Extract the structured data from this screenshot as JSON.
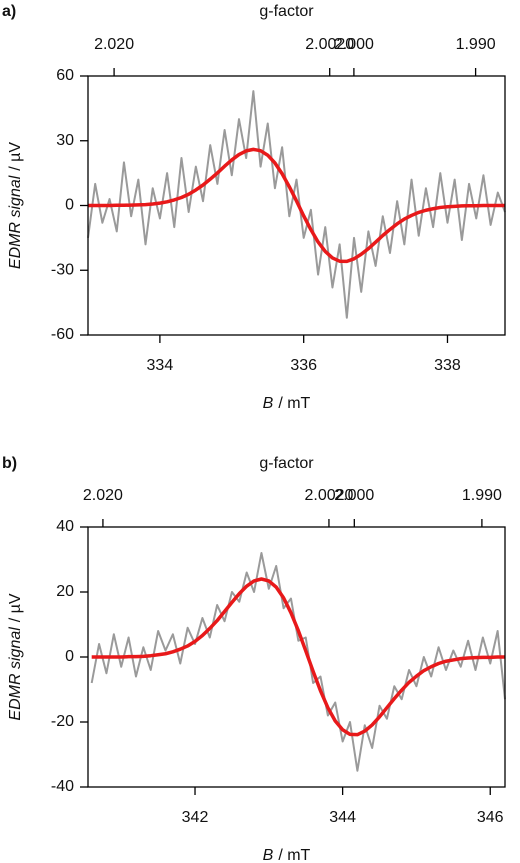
{
  "chart_data": [
    {
      "type": "line",
      "panel_label": "a)",
      "x2_label": "g-factor",
      "x_label": [
        "B",
        "/ mT"
      ],
      "y_label": [
        "EDMR signal",
        "/ µV"
      ],
      "xlim": [
        333,
        338.8
      ],
      "xticks": [
        334,
        336,
        338
      ],
      "ylim": [
        -60,
        60
      ],
      "yticks": [
        -60,
        -30,
        0,
        30,
        60
      ],
      "x2scale": "reciprocal",
      "x2lim": [
        2.0222,
        1.9876
      ],
      "x2ticks": [
        {
          "value": 2.02,
          "label": "2.020"
        },
        {
          "value": 2.002,
          "label": "2.0020"
        },
        {
          "value": 2,
          "label": "2.000"
        },
        {
          "value": 1.99,
          "label": "1.990"
        }
      ],
      "x": [
        333.0,
        333.1,
        333.2,
        333.3,
        333.4,
        333.5,
        333.6,
        333.7,
        333.8,
        333.9,
        334.0,
        334.1,
        334.2,
        334.3,
        334.4,
        334.5,
        334.6,
        334.7,
        334.8,
        334.9,
        335.0,
        335.1,
        335.2,
        335.3,
        335.4,
        335.5,
        335.6,
        335.7,
        335.8,
        335.9,
        336.0,
        336.1,
        336.2,
        336.3,
        336.4,
        336.5,
        336.6,
        336.7,
        336.8,
        336.9,
        337.0,
        337.1,
        337.2,
        337.3,
        337.4,
        337.5,
        337.6,
        337.7,
        337.8,
        337.9,
        338.0,
        338.1,
        338.2,
        338.3,
        338.4,
        338.5,
        338.6,
        338.7,
        338.8
      ],
      "series": [
        {
          "color": "#9a9a9a",
          "width": 2,
          "values": [
            -15,
            10,
            -8,
            3,
            -12,
            20,
            -5,
            12,
            -18,
            8,
            -6,
            15,
            -10,
            22,
            -3,
            18,
            2,
            28,
            10,
            35,
            14,
            40,
            22,
            53,
            18,
            38,
            8,
            27,
            -5,
            12,
            -15,
            -2,
            -32,
            -10,
            -38,
            -18,
            -52,
            -15,
            -40,
            -12,
            -28,
            -5,
            -22,
            2,
            -18,
            12,
            -14,
            8,
            -10,
            15,
            -8,
            12,
            -16,
            10,
            -6,
            14,
            -9,
            6,
            -3
          ]
        },
        {
          "color": "#e8191a",
          "width": 3.5,
          "values": [
            0,
            0,
            0,
            0,
            0.1,
            0.1,
            0.2,
            0.3,
            0.4,
            0.7,
            1.1,
            1.7,
            2.6,
            3.7,
            5.2,
            7.2,
            9.5,
            12.2,
            15.1,
            18.2,
            21.1,
            23.6,
            25.3,
            26,
            25.4,
            23.3,
            19.7,
            14.7,
            8.7,
            2.1,
            -4.8,
            -11.2,
            -16.9,
            -21.3,
            -24.3,
            -25.8,
            -25.9,
            -24.7,
            -22.6,
            -20,
            -17,
            -13.9,
            -11.1,
            -8.5,
            -6.3,
            -4.6,
            -3.2,
            -2.2,
            -1.5,
            -0.9,
            -0.6,
            -0.4,
            -0.2,
            -0.1,
            -0.1,
            0,
            0,
            0,
            0
          ]
        }
      ]
    },
    {
      "type": "line",
      "panel_label": "b)",
      "x2_label": "g-factor",
      "x_label": [
        "B",
        "/ mT"
      ],
      "y_label": [
        "EDMR signal",
        "/ µV"
      ],
      "xlim": [
        340.55,
        346.2
      ],
      "xticks": [
        342,
        344,
        346
      ],
      "ylim": [
        -40,
        40
      ],
      "yticks": [
        -40,
        -20,
        0,
        20,
        40
      ],
      "x2scale": "reciprocal",
      "x2lim": [
        2.0212,
        1.9882
      ],
      "x2ticks": [
        {
          "value": 2.02,
          "label": "2.020"
        },
        {
          "value": 2.002,
          "label": "2.0020"
        },
        {
          "value": 2,
          "label": "2.000"
        },
        {
          "value": 1.99,
          "label": "1.990"
        }
      ],
      "x": [
        340.6,
        340.7,
        340.8,
        340.9,
        341.0,
        341.1,
        341.2,
        341.3,
        341.4,
        341.5,
        341.6,
        341.7,
        341.8,
        341.9,
        342.0,
        342.1,
        342.2,
        342.3,
        342.4,
        342.5,
        342.6,
        342.7,
        342.8,
        342.9,
        343.0,
        343.1,
        343.2,
        343.3,
        343.4,
        343.5,
        343.6,
        343.7,
        343.8,
        343.9,
        344.0,
        344.1,
        344.2,
        344.3,
        344.4,
        344.5,
        344.6,
        344.7,
        344.8,
        344.9,
        345.0,
        345.1,
        345.2,
        345.3,
        345.4,
        345.5,
        345.6,
        345.7,
        345.8,
        345.9,
        346.0,
        346.1,
        346.2
      ],
      "series": [
        {
          "color": "#9a9a9a",
          "width": 2,
          "values": [
            -8,
            4,
            -5,
            7,
            -3,
            6,
            -6,
            3,
            -4,
            8,
            2,
            7,
            -2,
            9,
            4,
            12,
            6,
            16,
            11,
            20,
            17,
            26,
            20,
            32,
            21,
            28,
            15,
            18,
            5,
            6,
            -8,
            -6,
            -18,
            -14,
            -26,
            -20,
            -35,
            -21,
            -28,
            -15,
            -19,
            -9,
            -13,
            -4,
            -9,
            0,
            -6,
            3,
            -4,
            2,
            -3,
            5,
            -4,
            6,
            -2,
            8,
            -13
          ]
        },
        {
          "color": "#e8191a",
          "width": 3.5,
          "values": [
            0,
            0,
            0,
            0,
            0,
            0.1,
            0.1,
            0.2,
            0.4,
            0.7,
            1,
            1.6,
            2.4,
            3.4,
            4.8,
            6.6,
            8.8,
            11.2,
            14,
            16.8,
            19.5,
            21.8,
            23.4,
            24,
            23.4,
            21.5,
            18.2,
            13.6,
            8.1,
            1.9,
            -4.4,
            -10.4,
            -15.6,
            -19.7,
            -22.4,
            -23.8,
            -23.9,
            -22.8,
            -20.9,
            -18.4,
            -15.6,
            -12.8,
            -10.2,
            -7.8,
            -5.9,
            -4.2,
            -3,
            -2,
            -1.3,
            -0.9,
            -0.5,
            -0.3,
            -0.2,
            -0.1,
            -0.1,
            0,
            0
          ]
        }
      ]
    }
  ]
}
